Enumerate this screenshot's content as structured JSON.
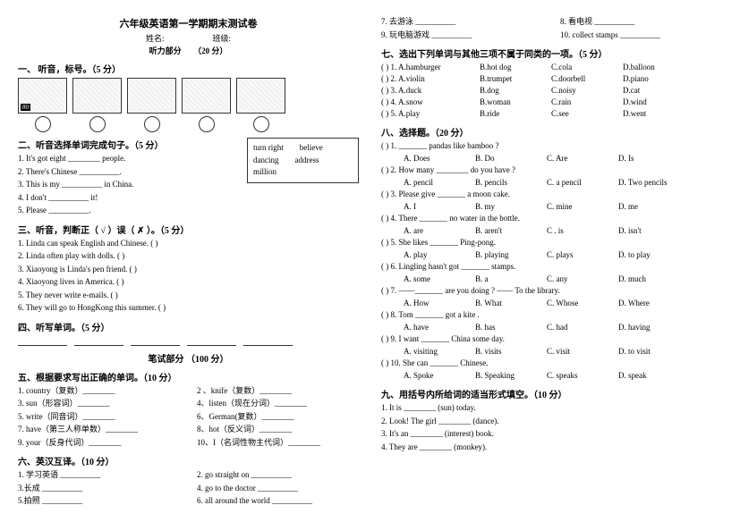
{
  "header": {
    "main_title": "六年级英语第一学期期末测试卷",
    "section_label": "听力部分",
    "score_label": "（20 分）",
    "name_label": "姓名:",
    "class_label": "班级:"
  },
  "left": {
    "s1_title": "一、 听音，标号。（5 分）",
    "s2_title": "二、听音选择单词完成句子。（5 分）",
    "word_box": [
      "turn right",
      "believe",
      "dancing",
      "address",
      "million"
    ],
    "s2_items": [
      "1. It's got eight ________ people.",
      "2. There's Chinese __________.",
      "3. This is my __________ in China.",
      "4. I don't __________ it!",
      "5. Please __________."
    ],
    "s3_title": "三、听音，判断正（ √ ）误（ ✗ ）。（5 分）",
    "s3_items": [
      "1.  Linda can speak English and Chinese. (     )",
      "2.  Linda often play with dolls. (     )",
      "3.  Xiaoyong is Linda's pen friend. (    )",
      "4.  Xiaoyong lives in America. (     )",
      "5.  They never write e-mails. (     )",
      "6.  They will go to HongKong this summer.  (     )"
    ],
    "s4_title": "四、听写单词。（5 分）",
    "written_mark": "笔试部分  （100 分）",
    "s5_title": "五、根据要求写出正确的单词。（10 分）",
    "s5_pairs": [
      [
        "1.  country（复数）________",
        "2 、knife（复数）________"
      ],
      [
        "3.  sun（形容词）________",
        "4、listen（现在分词）________"
      ],
      [
        "5.  write（同音词）________",
        "6、German(复数）________"
      ],
      [
        "7.  have（第三人称单数）________",
        "8、hot（反义词）________"
      ],
      [
        "9.  your（反身代词）________",
        "10、I（名词性物主代词）________"
      ]
    ],
    "s6_title": "六、英汉互译。（10 分）",
    "s6_pairs": [
      [
        "1. 学习英语  __________",
        "2. go  straight  on  __________"
      ],
      [
        "3.长成  __________",
        "4. go  to  the  doctor  __________"
      ],
      [
        "5.拍照  __________",
        "6. all  around  the  world __________"
      ]
    ]
  },
  "right": {
    "s6_cont": [
      [
        "7.  去游泳  __________",
        "8. 看电视  __________"
      ],
      [
        "9.  玩电脑游戏  __________",
        "10. collect  stamps  __________"
      ]
    ],
    "s7_title": "七、选出下列单词与其他三项不属于同类的一项。（5 分）",
    "s7_items": [
      {
        "n": "(       ) 1.",
        "opts": [
          "A.hamburger",
          "B.hot dog",
          "C.cola",
          "D.balloon"
        ]
      },
      {
        "n": "(       ) 2.",
        "opts": [
          "A.violin",
          "B.trumpet",
          "C.doorbell",
          "D.piano"
        ]
      },
      {
        "n": "(       ) 3.",
        "opts": [
          "A.duck",
          "B.dog",
          "C.noisy",
          "D.cat"
        ]
      },
      {
        "n": "(       ) 4.",
        "opts": [
          "A.snow",
          "B.woman",
          "C.rain",
          "D.wind"
        ]
      },
      {
        "n": "(       ) 5.",
        "opts": [
          "A.play",
          "B.ride",
          "C.see",
          "D.went"
        ]
      }
    ],
    "s8_title": "八、选择题。（20 分）",
    "s8_items": [
      {
        "q": "(      ) 1. _______ pandas  like  bamboo ?",
        "opts": [
          "A. Does",
          "B. Do",
          "C. Are",
          "D. Is"
        ]
      },
      {
        "q": "(      ) 2.  How  many  ________ do  you  have ?",
        "opts": [
          "A. pencil",
          "B. pencils",
          "C. a  pencil",
          "D.  Two  pencils"
        ]
      },
      {
        "q": "(      ) 3.  Please  give  _______ a  moon  cake.",
        "opts": [
          "A. I",
          "B. my",
          "C. mine",
          "D. me"
        ]
      },
      {
        "q": "(      ) 4. There  _______ no  water  in  the  bottle.",
        "opts": [
          "A. are",
          "B. aren't",
          "C . is",
          "D. isn't"
        ]
      },
      {
        "q": "(      ) 5. She  likes  _______ Ping-pong.",
        "opts": [
          "A. play",
          "B. playing",
          "C. plays",
          "D. to  play"
        ]
      },
      {
        "q": "(      ) 6. Lingling  hasn't  got  _______ stamps.",
        "opts": [
          "A. some",
          "B. a",
          "C. any",
          "D. much"
        ]
      },
      {
        "q": "(      ) 7. ——_______  are  you  doing ?       —— To  the  library.",
        "opts": [
          "A. How",
          "B. What",
          "C. Whose",
          "D. Where"
        ]
      },
      {
        "q": "(      ) 8. Tom _______ got  a  kite .",
        "opts": [
          "A. have",
          "B. has",
          "C. had",
          "D. having"
        ]
      },
      {
        "q": "(      ) 9. I  want _______ China  some  day.",
        "opts": [
          "A. visiting",
          "B. visits",
          "C. visit",
          "D. to  visit"
        ]
      },
      {
        "q": "(      ) 10. She  can  _______ Chinese.",
        "opts": [
          "A. Spoke",
          "B. Speaking",
          "C. speaks",
          "D.  speak"
        ]
      }
    ],
    "s9_title": "九、用括号内所给词的适当形式填空。（10 分）",
    "s9_items": [
      "1.  It  is  ________ (sun)   today.",
      "2.  Look!  The  girl ________ (dance).",
      "3.  It's  an ________ (interest)  book.",
      "4.  They  are ________ (monkey)."
    ]
  }
}
